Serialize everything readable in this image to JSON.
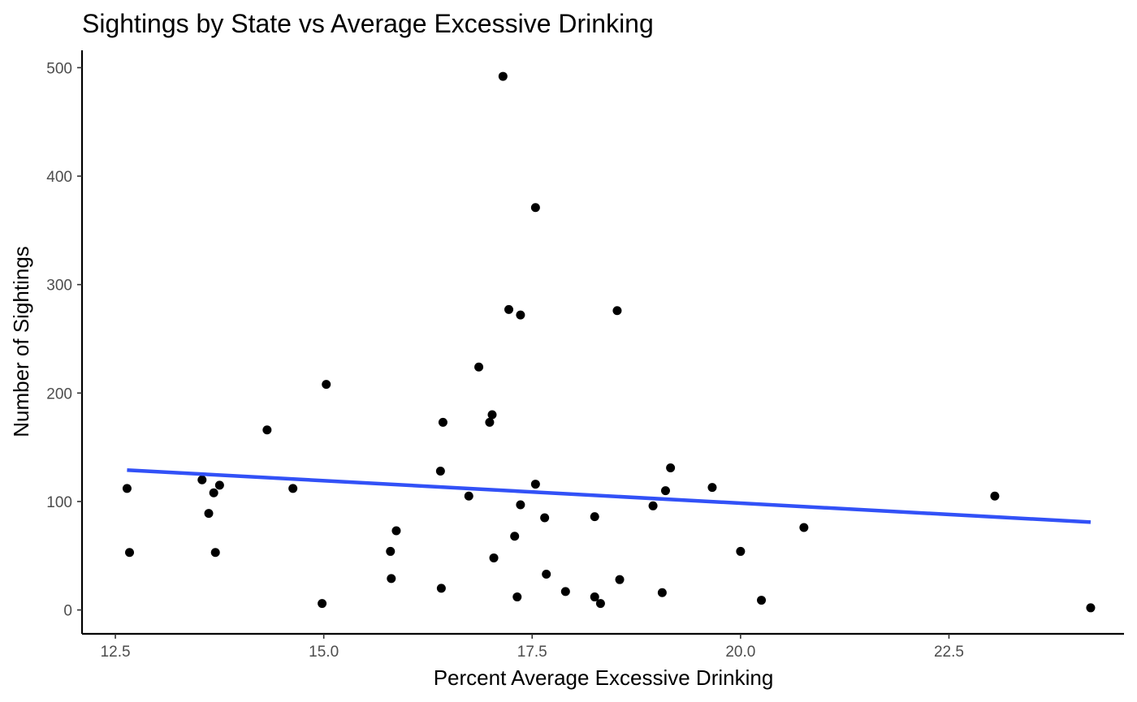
{
  "chart_data": {
    "type": "scatter",
    "title": "Sightings by State vs Average Excessive Drinking",
    "xlabel": "Percent Average Excessive Drinking",
    "ylabel": "Number of Sightings",
    "xlim": [
      12.1,
      24.6
    ],
    "ylim": [
      -22,
      516
    ],
    "xticks": [
      12.5,
      15.0,
      17.5,
      20.0,
      22.5
    ],
    "xtick_labels": [
      "12.5",
      "15.0",
      "17.5",
      "20.0",
      "22.5"
    ],
    "yticks": [
      0,
      100,
      200,
      300,
      400,
      500
    ],
    "ytick_labels": [
      "0",
      "100",
      "200",
      "300",
      "400",
      "500"
    ],
    "grid": false,
    "point_color": "#000000",
    "trend_color": "#3251f7",
    "points": [
      {
        "x": 12.64,
        "y": 112
      },
      {
        "x": 12.67,
        "y": 53
      },
      {
        "x": 13.54,
        "y": 120
      },
      {
        "x": 13.62,
        "y": 89
      },
      {
        "x": 13.68,
        "y": 108
      },
      {
        "x": 13.7,
        "y": 53
      },
      {
        "x": 13.75,
        "y": 115
      },
      {
        "x": 14.32,
        "y": 166
      },
      {
        "x": 14.63,
        "y": 112
      },
      {
        "x": 14.98,
        "y": 6
      },
      {
        "x": 15.03,
        "y": 208
      },
      {
        "x": 15.8,
        "y": 54
      },
      {
        "x": 15.81,
        "y": 29
      },
      {
        "x": 15.87,
        "y": 73
      },
      {
        "x": 16.4,
        "y": 128
      },
      {
        "x": 16.41,
        "y": 20
      },
      {
        "x": 16.43,
        "y": 173
      },
      {
        "x": 16.74,
        "y": 105
      },
      {
        "x": 16.86,
        "y": 224
      },
      {
        "x": 16.99,
        "y": 173
      },
      {
        "x": 17.02,
        "y": 180
      },
      {
        "x": 17.04,
        "y": 48
      },
      {
        "x": 17.15,
        "y": 492
      },
      {
        "x": 17.22,
        "y": 277
      },
      {
        "x": 17.29,
        "y": 68
      },
      {
        "x": 17.32,
        "y": 12
      },
      {
        "x": 17.36,
        "y": 272
      },
      {
        "x": 17.36,
        "y": 97
      },
      {
        "x": 17.54,
        "y": 371
      },
      {
        "x": 17.54,
        "y": 116
      },
      {
        "x": 17.65,
        "y": 85
      },
      {
        "x": 17.67,
        "y": 33
      },
      {
        "x": 17.9,
        "y": 17
      },
      {
        "x": 18.25,
        "y": 86
      },
      {
        "x": 18.25,
        "y": 12
      },
      {
        "x": 18.32,
        "y": 6
      },
      {
        "x": 18.52,
        "y": 276
      },
      {
        "x": 18.55,
        "y": 28
      },
      {
        "x": 18.95,
        "y": 96
      },
      {
        "x": 19.06,
        "y": 16
      },
      {
        "x": 19.1,
        "y": 110
      },
      {
        "x": 19.16,
        "y": 131
      },
      {
        "x": 19.66,
        "y": 113
      },
      {
        "x": 20.0,
        "y": 54
      },
      {
        "x": 20.25,
        "y": 9
      },
      {
        "x": 20.76,
        "y": 76
      },
      {
        "x": 23.05,
        "y": 105
      },
      {
        "x": 24.2,
        "y": 2
      }
    ],
    "trend_line": {
      "x": [
        12.64,
        24.2
      ],
      "y": [
        129,
        81
      ]
    }
  }
}
